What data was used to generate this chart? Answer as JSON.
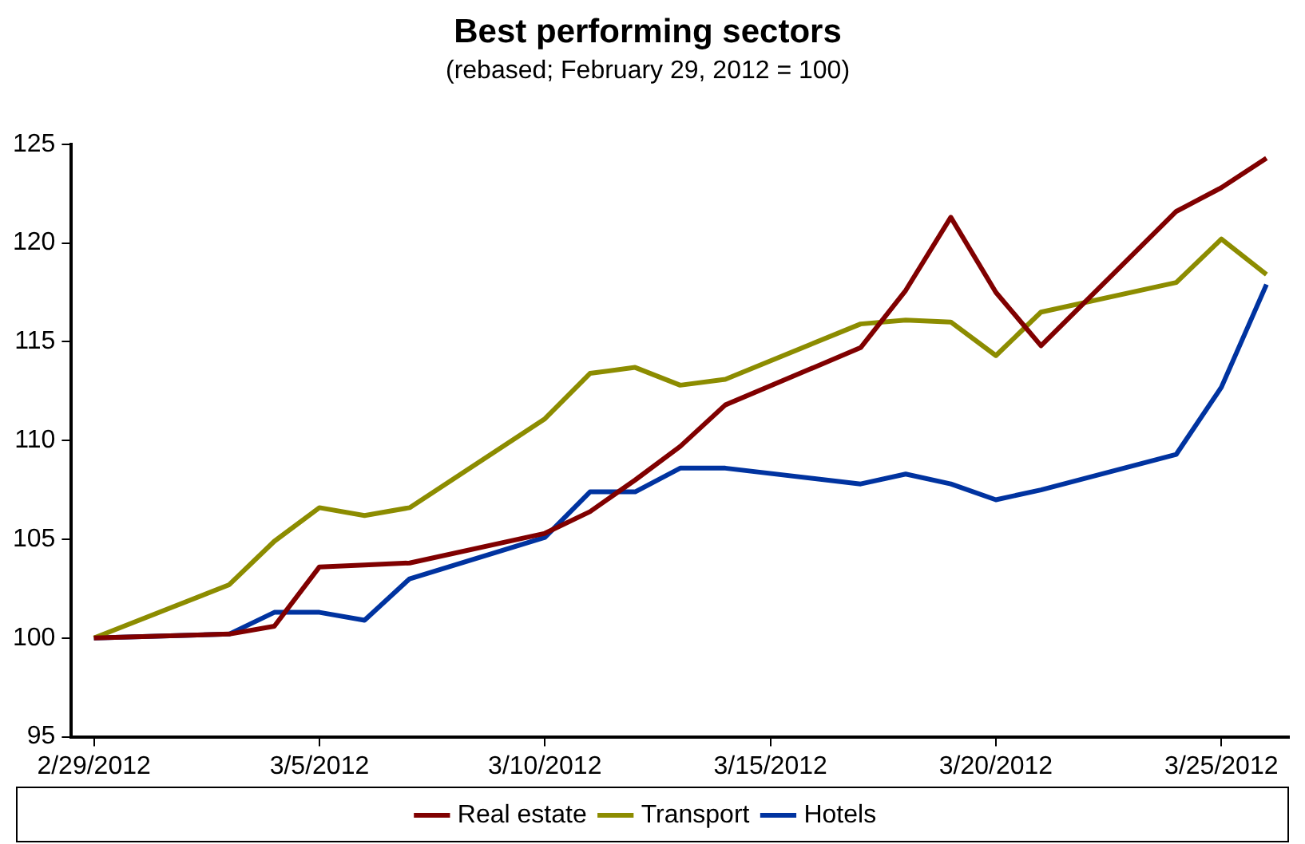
{
  "chart_data": {
    "type": "line",
    "title": "Best performing sectors",
    "subtitle": "(rebased; February 29, 2012 = 100)",
    "x": [
      "2012-02-29",
      "2012-03-03",
      "2012-03-04",
      "2012-03-05",
      "2012-03-06",
      "2012-03-07",
      "2012-03-10",
      "2012-03-11",
      "2012-03-12",
      "2012-03-13",
      "2012-03-14",
      "2012-03-17",
      "2012-03-18",
      "2012-03-19",
      "2012-03-20",
      "2012-03-21",
      "2012-03-24",
      "2012-03-25",
      "2012-03-26"
    ],
    "series": [
      {
        "name": "Real estate",
        "color": "#800000",
        "values": [
          100,
          100.2,
          100.6,
          103.6,
          103.7,
          103.8,
          105.3,
          106.4,
          108.0,
          109.7,
          111.8,
          114.7,
          117.6,
          121.3,
          117.5,
          114.8,
          121.6,
          122.8,
          124.3
        ]
      },
      {
        "name": "Transport",
        "color": "#8c8c00",
        "values": [
          100,
          102.7,
          104.9,
          106.6,
          106.2,
          106.6,
          111.1,
          113.4,
          113.7,
          112.8,
          113.1,
          115.9,
          116.1,
          116.0,
          114.3,
          116.5,
          118.0,
          120.2,
          118.4
        ]
      },
      {
        "name": "Hotels",
        "color": "#0033a0",
        "values": [
          100,
          100.2,
          101.3,
          101.3,
          100.9,
          103.0,
          105.1,
          107.4,
          107.4,
          108.6,
          108.6,
          107.8,
          108.3,
          107.8,
          107.0,
          107.5,
          109.3,
          112.7,
          117.9
        ]
      }
    ],
    "xlim": [
      "2012-02-28T12:00",
      "2012-03-26T12:00"
    ],
    "xticks": [
      {
        "value": "2012-02-29",
        "label": "2/29/2012"
      },
      {
        "value": "2012-03-05",
        "label": "3/5/2012"
      },
      {
        "value": "2012-03-10",
        "label": "3/10/2012"
      },
      {
        "value": "2012-03-15",
        "label": "3/15/2012"
      },
      {
        "value": "2012-03-20",
        "label": "3/20/2012"
      },
      {
        "value": "2012-03-25",
        "label": "3/25/2012"
      }
    ],
    "ylim": [
      95,
      125
    ],
    "yticks": [
      95,
      100,
      105,
      110,
      115,
      120,
      125
    ],
    "grid": false,
    "legend": "bottom",
    "marker": "none",
    "line_style": "solid"
  }
}
